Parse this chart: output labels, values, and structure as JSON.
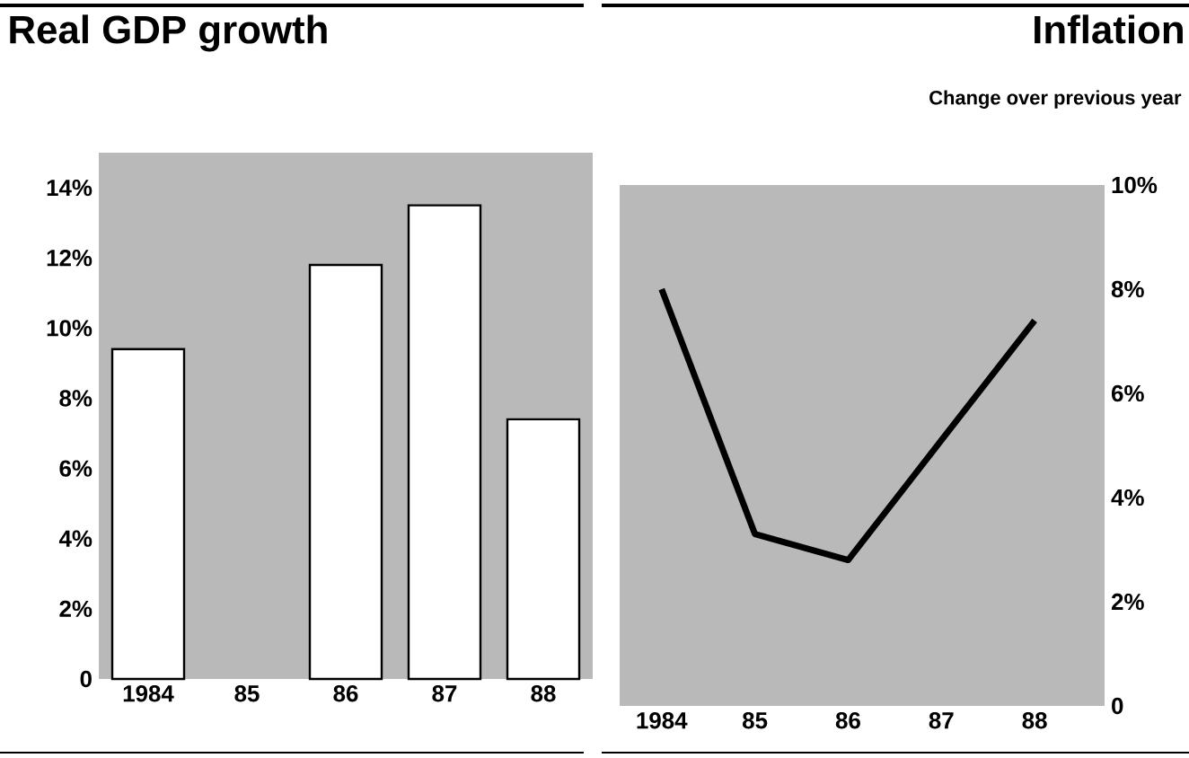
{
  "chart_data": [
    {
      "type": "bar",
      "title": "Real GDP growth",
      "categories": [
        "1984",
        "85",
        "86",
        "87",
        "88"
      ],
      "values": [
        9.4,
        null,
        11.8,
        13.5,
        7.4
      ],
      "color": "#ffffff",
      "ylim": [
        0,
        15
      ],
      "yticks": [
        {
          "value": 0,
          "label": "0"
        },
        {
          "value": 2,
          "label": "2%"
        },
        {
          "value": 4,
          "label": "4%"
        },
        {
          "value": 6,
          "label": "6%"
        },
        {
          "value": 8,
          "label": "8%"
        },
        {
          "value": 10,
          "label": "10%"
        },
        {
          "value": 12,
          "label": "12%"
        },
        {
          "value": 14,
          "label": "14%"
        }
      ]
    },
    {
      "type": "line",
      "title": "Inflation",
      "subtitle": "Change over previous year",
      "categories": [
        "1984",
        "85",
        "86",
        "87",
        "88"
      ],
      "values": [
        8.0,
        3.3,
        2.8,
        5.1,
        7.4
      ],
      "color": "#000000",
      "ylim": [
        0,
        10
      ],
      "yticks": [
        {
          "value": 0,
          "label": "0"
        },
        {
          "value": 2,
          "label": "2%"
        },
        {
          "value": 4,
          "label": "4%"
        },
        {
          "value": 6,
          "label": "6%"
        },
        {
          "value": 8,
          "label": "8%"
        },
        {
          "value": 10,
          "label": "10%"
        }
      ]
    }
  ]
}
